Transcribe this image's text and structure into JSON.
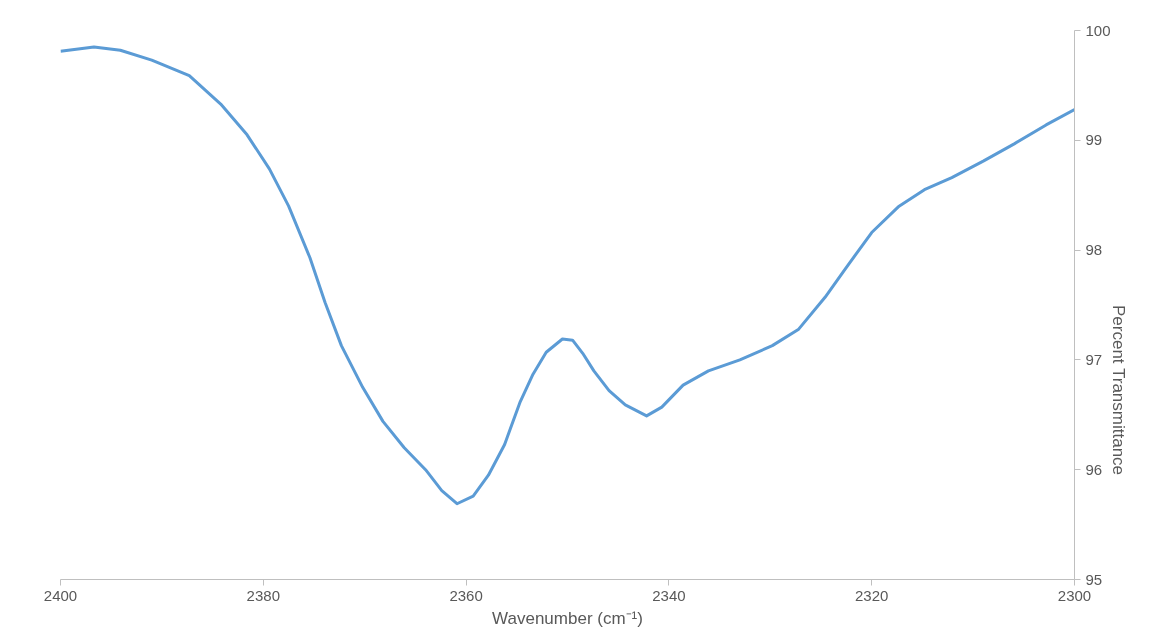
{
  "chart_data": {
    "type": "line",
    "xlabel": "Wavenumber (cm⁻¹)",
    "ylabel": "Percent Transmittance",
    "xlim": [
      2400,
      2300
    ],
    "ylim": [
      95,
      100
    ],
    "xticks": [
      2400,
      2380,
      2360,
      2340,
      2320,
      2300
    ],
    "yticks": [
      95,
      96,
      97,
      98,
      99,
      100
    ],
    "grid": false,
    "marker": "none",
    "line_style": "solid",
    "series": [
      {
        "color": "#5b9bd5",
        "x": [
          2400,
          2396.7,
          2394.1,
          2391.0,
          2387.3,
          2384.2,
          2381.6,
          2379.4,
          2377.5,
          2375.4,
          2373.9,
          2372.3,
          2370.2,
          2368.2,
          2366.1,
          2364.0,
          2362.4,
          2360.9,
          2359.3,
          2357.8,
          2356.2,
          2354.7,
          2353.4,
          2352.1,
          2350.5,
          2349.5,
          2348.5,
          2347.4,
          2345.9,
          2344.3,
          2342.2,
          2340.7,
          2338.6,
          2336.1,
          2333.0,
          2329.8,
          2327.2,
          2324.6,
          2322.6,
          2320.0,
          2317.3,
          2314.8,
          2312.1,
          2309.0,
          2305.9,
          2302.8,
          2300
        ],
        "values": [
          99.81,
          99.85,
          99.82,
          99.73,
          99.59,
          99.33,
          99.05,
          98.74,
          98.4,
          97.93,
          97.52,
          97.13,
          96.75,
          96.44,
          96.2,
          96.0,
          95.81,
          95.69,
          95.76,
          95.95,
          96.23,
          96.61,
          96.87,
          97.07,
          97.19,
          97.18,
          97.06,
          96.9,
          96.72,
          96.59,
          96.49,
          96.57,
          96.77,
          96.9,
          97.0,
          97.13,
          97.28,
          97.57,
          97.83,
          98.16,
          98.4,
          98.55,
          98.66,
          98.81,
          98.97,
          99.14,
          99.28
        ]
      }
    ]
  }
}
